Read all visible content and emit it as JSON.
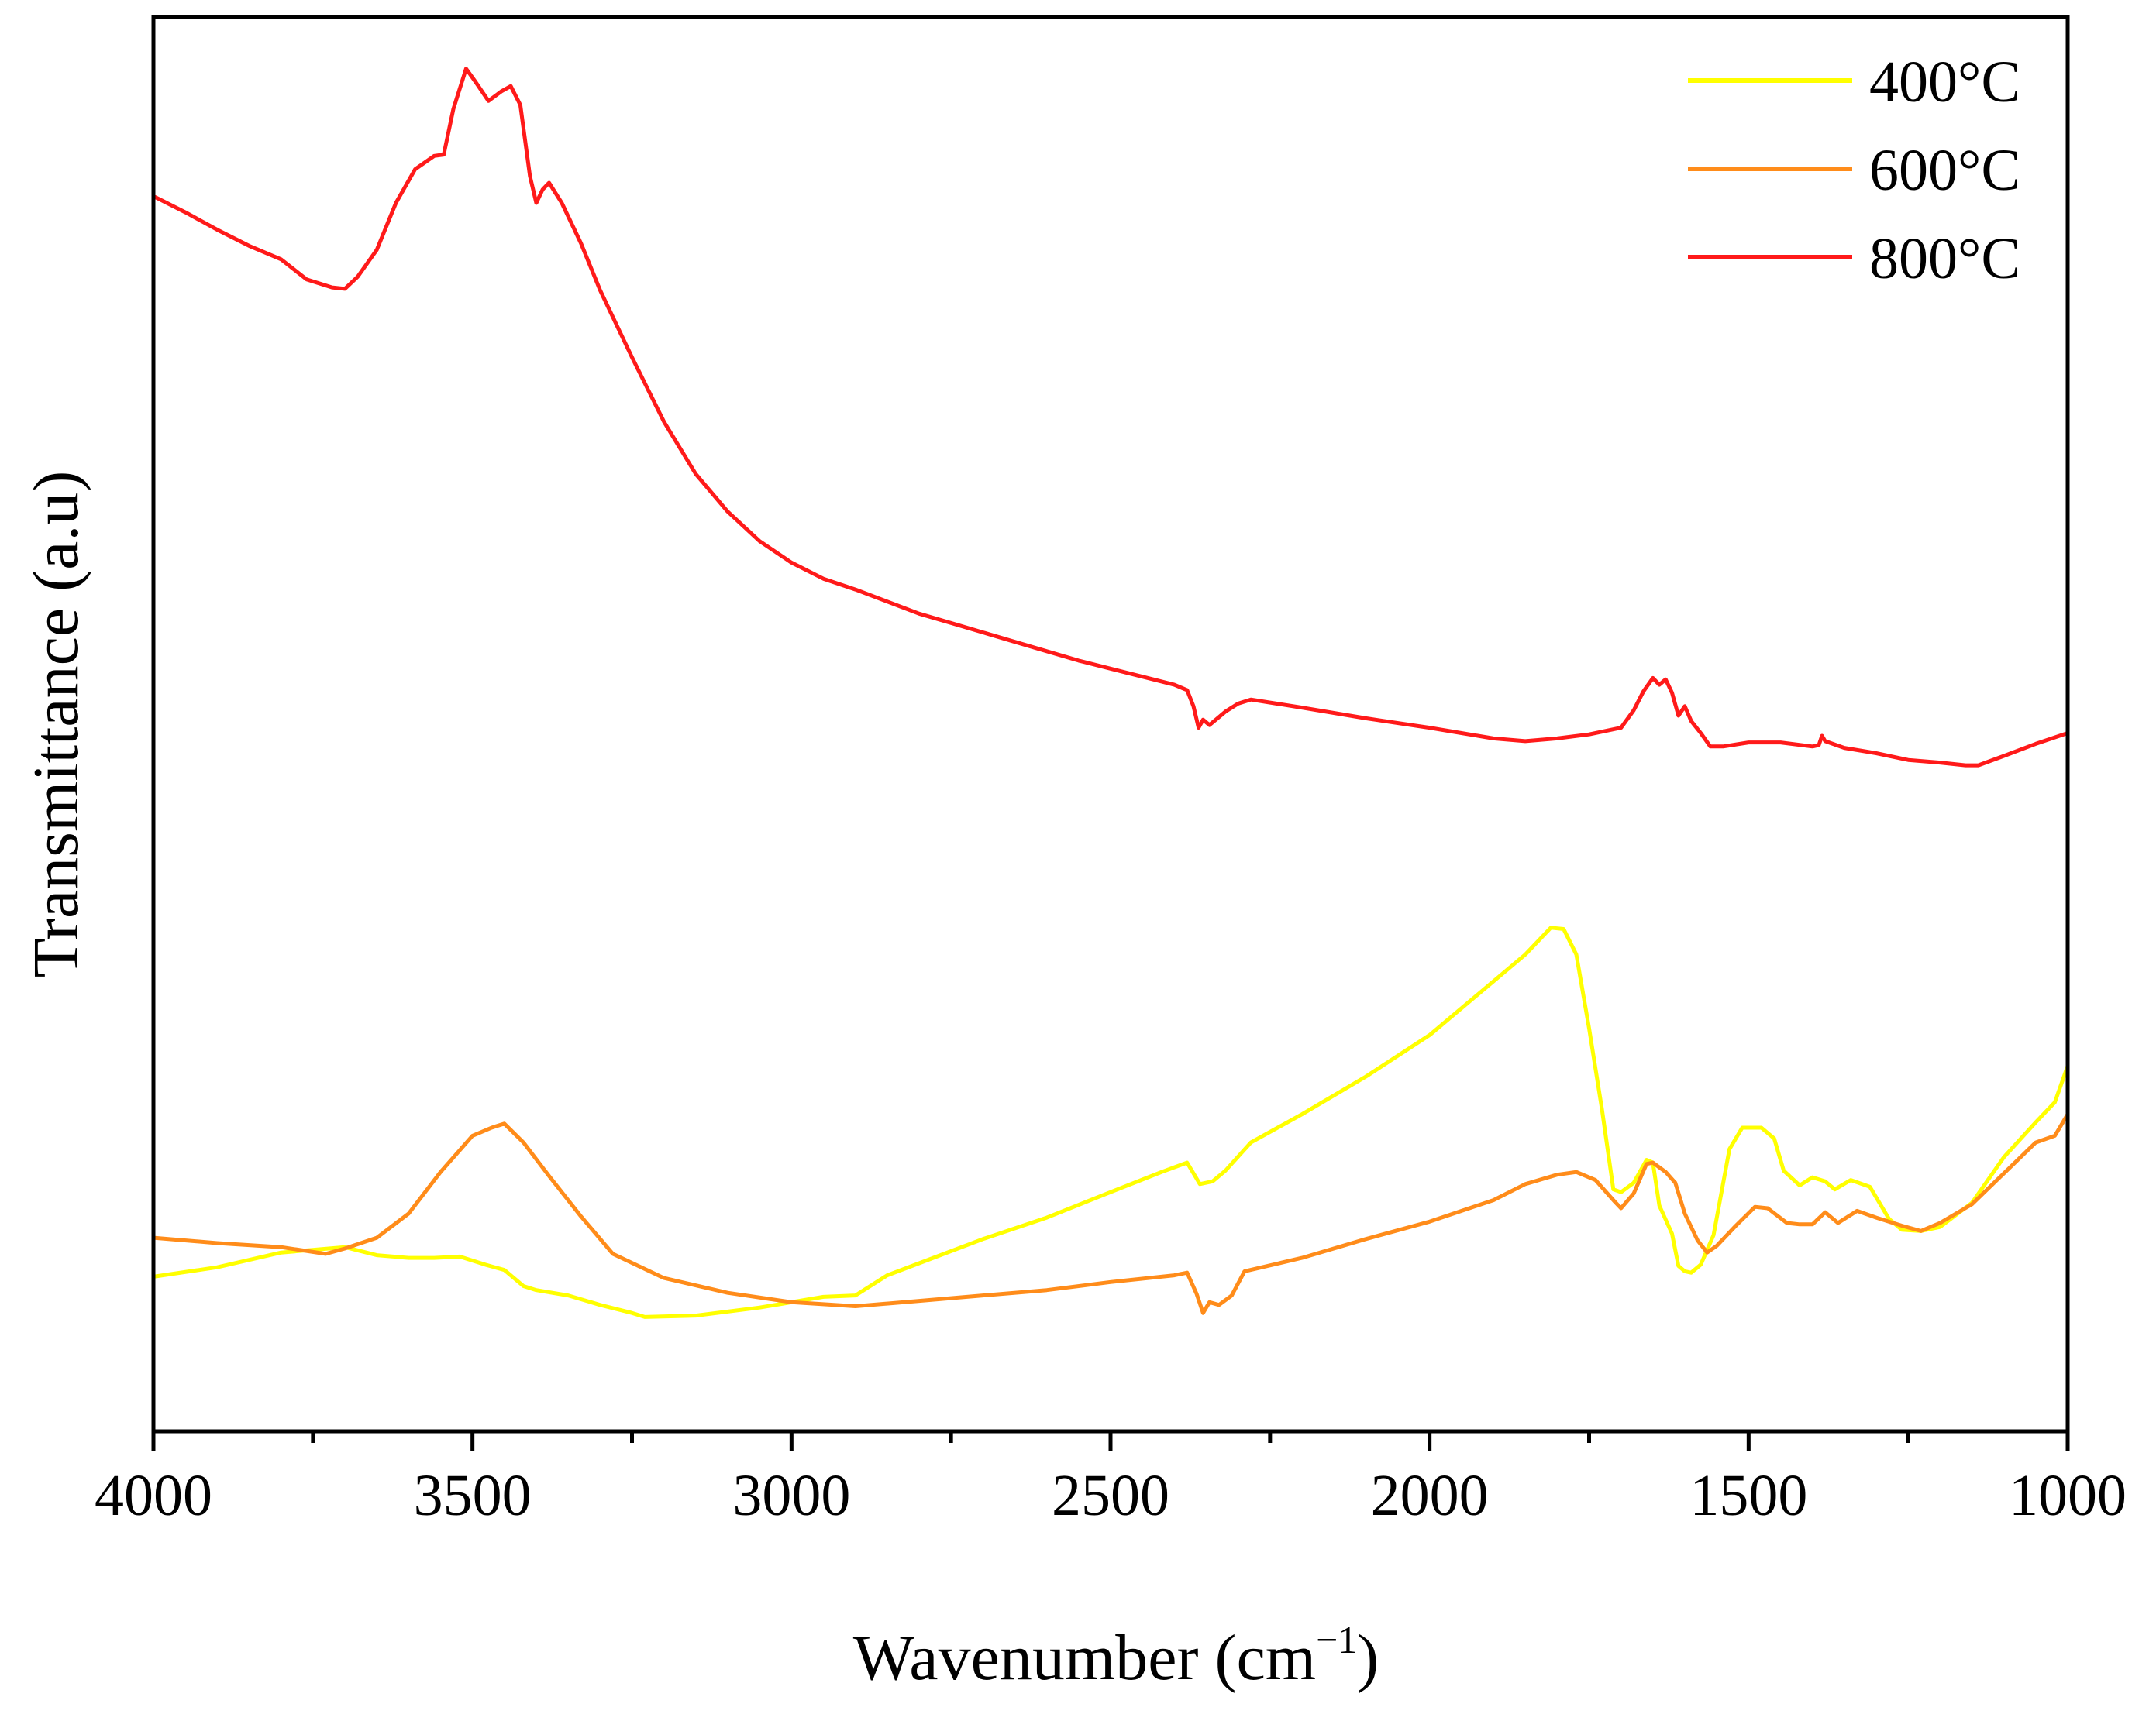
{
  "chart_data": {
    "type": "line",
    "title": "",
    "xlabel": "Wavenumber (cm",
    "xlabel_sup": "−1",
    "xlabel_close": ")",
    "ylabel": "Transmittance (a.u)",
    "xlim": [
      4000,
      1000
    ],
    "ylim": [
      0,
      100
    ],
    "x_ticks": [
      4000,
      3500,
      3000,
      2500,
      2000,
      1500,
      1000
    ],
    "x_tick_labels": [
      "4000",
      "3500",
      "3000",
      "2500",
      "2000",
      "1500",
      "1000"
    ],
    "legend_position": "top-right",
    "series": [
      {
        "name": "400°C",
        "color": "#ffff00",
        "points": [
          [
            4000,
            9.5
          ],
          [
            3900,
            10.2
          ],
          [
            3800,
            11.3
          ],
          [
            3700,
            11.7
          ],
          [
            3650,
            11.1
          ],
          [
            3600,
            10.9
          ],
          [
            3560,
            10.9
          ],
          [
            3520,
            11.0
          ],
          [
            3480,
            10.4
          ],
          [
            3450,
            10.0
          ],
          [
            3420,
            8.8
          ],
          [
            3400,
            8.5
          ],
          [
            3350,
            8.1
          ],
          [
            3300,
            7.4
          ],
          [
            3250,
            6.8
          ],
          [
            3230,
            6.5
          ],
          [
            3150,
            6.6
          ],
          [
            3050,
            7.2
          ],
          [
            2950,
            8.0
          ],
          [
            2900,
            8.1
          ],
          [
            2850,
            9.6
          ],
          [
            2800,
            10.5
          ],
          [
            2700,
            12.3
          ],
          [
            2600,
            13.9
          ],
          [
            2500,
            15.8
          ],
          [
            2420,
            17.3
          ],
          [
            2380,
            18.0
          ],
          [
            2360,
            16.4
          ],
          [
            2340,
            16.6
          ],
          [
            2320,
            17.4
          ],
          [
            2280,
            19.5
          ],
          [
            2200,
            21.6
          ],
          [
            2100,
            24.4
          ],
          [
            2000,
            27.5
          ],
          [
            1920,
            30.7
          ],
          [
            1850,
            33.5
          ],
          [
            1810,
            35.5
          ],
          [
            1790,
            35.4
          ],
          [
            1770,
            33.5
          ],
          [
            1750,
            28.0
          ],
          [
            1730,
            22.0
          ],
          [
            1712,
            16.0
          ],
          [
            1700,
            15.8
          ],
          [
            1680,
            16.5
          ],
          [
            1660,
            18.2
          ],
          [
            1650,
            18.0
          ],
          [
            1640,
            14.8
          ],
          [
            1620,
            12.7
          ],
          [
            1610,
            10.3
          ],
          [
            1600,
            9.9
          ],
          [
            1590,
            9.8
          ],
          [
            1575,
            10.4
          ],
          [
            1555,
            12.6
          ],
          [
            1530,
            19.0
          ],
          [
            1510,
            20.6
          ],
          [
            1480,
            20.6
          ],
          [
            1460,
            19.8
          ],
          [
            1445,
            17.4
          ],
          [
            1420,
            16.3
          ],
          [
            1400,
            16.9
          ],
          [
            1380,
            16.6
          ],
          [
            1365,
            16.0
          ],
          [
            1340,
            16.7
          ],
          [
            1310,
            16.2
          ],
          [
            1280,
            13.8
          ],
          [
            1260,
            13.0
          ],
          [
            1230,
            12.9
          ],
          [
            1200,
            13.2
          ],
          [
            1150,
            15.0
          ],
          [
            1100,
            18.4
          ],
          [
            1050,
            21.0
          ],
          [
            1020,
            22.5
          ],
          [
            1000,
            25.2
          ]
        ]
      },
      {
        "name": "600°C",
        "color": "#ff8c1a",
        "points": [
          [
            4000,
            12.4
          ],
          [
            3900,
            12.0
          ],
          [
            3800,
            11.7
          ],
          [
            3730,
            11.2
          ],
          [
            3700,
            11.6
          ],
          [
            3650,
            12.4
          ],
          [
            3600,
            14.2
          ],
          [
            3550,
            17.3
          ],
          [
            3500,
            20.0
          ],
          [
            3470,
            20.6
          ],
          [
            3450,
            20.9
          ],
          [
            3420,
            19.5
          ],
          [
            3380,
            17.0
          ],
          [
            3330,
            14.0
          ],
          [
            3280,
            11.2
          ],
          [
            3200,
            9.4
          ],
          [
            3100,
            8.3
          ],
          [
            3000,
            7.6
          ],
          [
            2900,
            7.3
          ],
          [
            2800,
            7.7
          ],
          [
            2700,
            8.1
          ],
          [
            2600,
            8.5
          ],
          [
            2500,
            9.1
          ],
          [
            2400,
            9.6
          ],
          [
            2380,
            9.8
          ],
          [
            2365,
            8.2
          ],
          [
            2355,
            6.8
          ],
          [
            2345,
            7.6
          ],
          [
            2330,
            7.4
          ],
          [
            2310,
            8.1
          ],
          [
            2290,
            9.9
          ],
          [
            2200,
            10.9
          ],
          [
            2100,
            12.3
          ],
          [
            2000,
            13.6
          ],
          [
            1900,
            15.2
          ],
          [
            1850,
            16.4
          ],
          [
            1800,
            17.1
          ],
          [
            1770,
            17.3
          ],
          [
            1740,
            16.7
          ],
          [
            1710,
            15.1
          ],
          [
            1700,
            14.6
          ],
          [
            1680,
            15.7
          ],
          [
            1660,
            17.9
          ],
          [
            1650,
            18.0
          ],
          [
            1630,
            17.3
          ],
          [
            1615,
            16.5
          ],
          [
            1600,
            14.2
          ],
          [
            1580,
            12.2
          ],
          [
            1565,
            11.3
          ],
          [
            1550,
            11.8
          ],
          [
            1520,
            13.3
          ],
          [
            1490,
            14.7
          ],
          [
            1470,
            14.6
          ],
          [
            1440,
            13.5
          ],
          [
            1420,
            13.4
          ],
          [
            1400,
            13.4
          ],
          [
            1380,
            14.3
          ],
          [
            1360,
            13.5
          ],
          [
            1330,
            14.4
          ],
          [
            1300,
            13.9
          ],
          [
            1260,
            13.3
          ],
          [
            1230,
            12.9
          ],
          [
            1200,
            13.5
          ],
          [
            1150,
            14.9
          ],
          [
            1100,
            17.2
          ],
          [
            1050,
            19.5
          ],
          [
            1020,
            20.0
          ],
          [
            1000,
            21.6
          ]
        ]
      },
      {
        "name": "800°C",
        "color": "#ff1a1a",
        "points": [
          [
            4000,
            90.0
          ],
          [
            3950,
            88.8
          ],
          [
            3900,
            87.5
          ],
          [
            3850,
            86.3
          ],
          [
            3800,
            85.3
          ],
          [
            3760,
            83.8
          ],
          [
            3720,
            83.2
          ],
          [
            3700,
            83.1
          ],
          [
            3680,
            84.0
          ],
          [
            3650,
            86.0
          ],
          [
            3620,
            89.5
          ],
          [
            3590,
            92.0
          ],
          [
            3560,
            93.0
          ],
          [
            3545,
            93.1
          ],
          [
            3530,
            96.5
          ],
          [
            3510,
            99.5
          ],
          [
            3495,
            98.5
          ],
          [
            3475,
            97.1
          ],
          [
            3455,
            97.8
          ],
          [
            3440,
            98.2
          ],
          [
            3425,
            96.8
          ],
          [
            3410,
            91.5
          ],
          [
            3400,
            89.5
          ],
          [
            3390,
            90.5
          ],
          [
            3380,
            91.0
          ],
          [
            3360,
            89.5
          ],
          [
            3330,
            86.5
          ],
          [
            3300,
            83.0
          ],
          [
            3250,
            78.0
          ],
          [
            3200,
            73.2
          ],
          [
            3150,
            69.3
          ],
          [
            3100,
            66.5
          ],
          [
            3050,
            64.3
          ],
          [
            3000,
            62.7
          ],
          [
            2950,
            61.5
          ],
          [
            2900,
            60.7
          ],
          [
            2850,
            59.8
          ],
          [
            2800,
            58.9
          ],
          [
            2750,
            58.2
          ],
          [
            2700,
            57.5
          ],
          [
            2650,
            56.8
          ],
          [
            2600,
            56.1
          ],
          [
            2550,
            55.4
          ],
          [
            2500,
            54.8
          ],
          [
            2450,
            54.2
          ],
          [
            2400,
            53.6
          ],
          [
            2380,
            53.2
          ],
          [
            2370,
            52.0
          ],
          [
            2362,
            50.4
          ],
          [
            2355,
            51.0
          ],
          [
            2345,
            50.6
          ],
          [
            2335,
            51.0
          ],
          [
            2320,
            51.6
          ],
          [
            2300,
            52.2
          ],
          [
            2280,
            52.5
          ],
          [
            2200,
            51.9
          ],
          [
            2100,
            51.1
          ],
          [
            2000,
            50.4
          ],
          [
            1950,
            50.0
          ],
          [
            1900,
            49.6
          ],
          [
            1850,
            49.4
          ],
          [
            1800,
            49.6
          ],
          [
            1750,
            49.9
          ],
          [
            1700,
            50.4
          ],
          [
            1680,
            51.7
          ],
          [
            1665,
            53.1
          ],
          [
            1650,
            54.1
          ],
          [
            1640,
            53.6
          ],
          [
            1630,
            54.0
          ],
          [
            1620,
            53.0
          ],
          [
            1610,
            51.3
          ],
          [
            1600,
            52.0
          ],
          [
            1590,
            50.9
          ],
          [
            1575,
            50.0
          ],
          [
            1560,
            49.0
          ],
          [
            1540,
            49.0
          ],
          [
            1500,
            49.3
          ],
          [
            1450,
            49.3
          ],
          [
            1400,
            49.0
          ],
          [
            1390,
            49.1
          ],
          [
            1385,
            49.8
          ],
          [
            1380,
            49.4
          ],
          [
            1350,
            48.9
          ],
          [
            1300,
            48.5
          ],
          [
            1250,
            48.0
          ],
          [
            1200,
            47.8
          ],
          [
            1160,
            47.6
          ],
          [
            1140,
            47.6
          ],
          [
            1100,
            48.3
          ],
          [
            1050,
            49.2
          ],
          [
            1000,
            50.0
          ]
        ]
      }
    ]
  }
}
